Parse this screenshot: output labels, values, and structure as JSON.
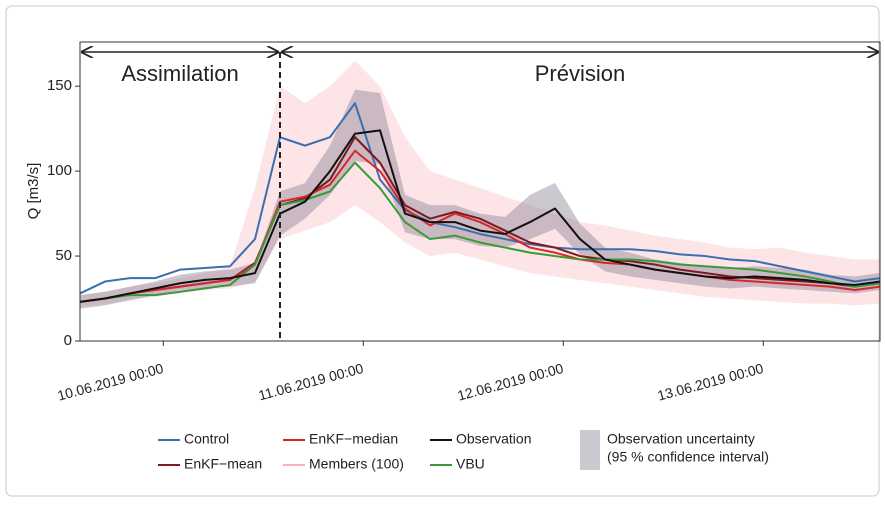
{
  "chart_data": {
    "type": "line",
    "y_label": "Q [m3/s]",
    "annotations": [
      "Assimilation",
      "Prévision"
    ],
    "assimilation_end": "2019-06-10 14:00",
    "x": [
      "2019-06-09 14:00",
      "2019-06-09 17:00",
      "2019-06-09 20:00",
      "2019-06-09 23:00",
      "2019-06-10 02:00",
      "2019-06-10 05:00",
      "2019-06-10 08:00",
      "2019-06-10 11:00",
      "2019-06-10 14:00",
      "2019-06-10 17:00",
      "2019-06-10 20:00",
      "2019-06-10 23:00",
      "2019-06-11 02:00",
      "2019-06-11 05:00",
      "2019-06-11 08:00",
      "2019-06-11 11:00",
      "2019-06-11 14:00",
      "2019-06-11 17:00",
      "2019-06-11 20:00",
      "2019-06-11 23:00",
      "2019-06-12 02:00",
      "2019-06-12 05:00",
      "2019-06-12 08:00",
      "2019-06-12 11:00",
      "2019-06-12 14:00",
      "2019-06-12 17:00",
      "2019-06-12 20:00",
      "2019-06-12 23:00",
      "2019-06-13 02:00",
      "2019-06-13 05:00",
      "2019-06-13 08:00",
      "2019-06-13 11:00",
      "2019-06-13 14:00"
    ],
    "xlim": [
      "2019-06-09 14:00",
      "2019-06-13 14:00"
    ],
    "xticks": [
      {
        "value": "2019-06-10 00:00",
        "label": "10.06.2019 00:00"
      },
      {
        "value": "2019-06-11 00:00",
        "label": "11.06.2019 00:00"
      },
      {
        "value": "2019-06-12 00:00",
        "label": "12.06.2019 00:00"
      },
      {
        "value": "2019-06-13 00:00",
        "label": "13.06.2019 00:00"
      }
    ],
    "ylim": [
      0,
      176
    ],
    "yticks": [
      0,
      50,
      100,
      150
    ],
    "bands": [
      {
        "name": [
          "Members (100)"
        ],
        "color": "#f6b3b9",
        "lower": [
          20,
          22,
          24,
          26,
          28,
          30,
          31,
          35,
          60,
          65,
          70,
          80,
          70,
          58,
          50,
          52,
          48,
          44,
          40,
          38,
          36,
          34,
          32,
          30,
          28,
          26,
          25,
          24,
          23,
          22,
          22,
          21,
          22
        ],
        "upper": [
          27,
          29,
          32,
          34,
          37,
          40,
          44,
          90,
          150,
          140,
          150,
          165,
          150,
          120,
          100,
          95,
          90,
          85,
          80,
          75,
          70,
          68,
          65,
          62,
          60,
          58,
          55,
          54,
          55,
          52,
          50,
          48,
          48
        ]
      },
      {
        "name": [
          "Observation uncertainty",
          "(95 % confidence interval)"
        ],
        "color": "#8e8694",
        "lower": [
          19,
          21,
          24,
          27,
          30,
          31,
          32,
          34,
          62,
          72,
          86,
          106,
          104,
          64,
          60,
          60,
          56,
          55,
          60,
          66,
          51,
          41,
          38,
          36,
          34,
          32,
          31,
          32,
          31,
          30,
          29,
          28,
          30
        ],
        "upper": [
          27,
          29,
          32,
          35,
          39,
          41,
          42,
          46,
          88,
          93,
          115,
          148,
          146,
          86,
          80,
          80,
          75,
          73,
          86,
          93,
          69,
          55,
          52,
          48,
          46,
          44,
          43,
          44,
          43,
          42,
          39,
          38,
          40
        ]
      }
    ],
    "series": [
      {
        "name": "Control",
        "color": "#3a6fb0",
        "values": [
          28,
          35,
          37,
          37,
          42,
          43,
          44,
          60,
          120,
          115,
          120,
          140,
          95,
          77,
          70,
          67,
          63,
          60,
          57,
          55,
          54,
          54,
          54,
          53,
          51,
          50,
          48,
          47,
          44,
          41,
          38,
          35,
          37
        ]
      },
      {
        "name": "EnKF−mean",
        "color": "#7a1a22",
        "values": [
          23,
          25,
          28,
          30,
          32,
          34,
          36,
          46,
          80,
          84,
          95,
          120,
          105,
          80,
          72,
          76,
          72,
          65,
          58,
          55,
          50,
          48,
          47,
          45,
          42,
          40,
          38,
          37,
          36,
          35,
          34,
          32,
          34
        ]
      },
      {
        "name": "EnKF−median",
        "color": "#d6282b",
        "values": [
          23,
          25,
          28,
          30,
          32,
          34,
          36,
          45,
          82,
          85,
          92,
          112,
          100,
          78,
          68,
          75,
          70,
          63,
          55,
          52,
          48,
          46,
          45,
          42,
          40,
          38,
          36,
          35,
          34,
          33,
          32,
          30,
          32
        ]
      },
      {
        "name": "VBU",
        "color": "#3a9a3a",
        "values": [
          23,
          25,
          27,
          27,
          29,
          31,
          33,
          45,
          80,
          83,
          88,
          105,
          90,
          70,
          60,
          62,
          58,
          55,
          52,
          50,
          48,
          48,
          48,
          47,
          45,
          44,
          43,
          42,
          40,
          38,
          35,
          32,
          34
        ]
      },
      {
        "name": "Observation",
        "color": "#111111",
        "values": [
          23,
          25,
          28,
          31,
          34,
          36,
          37,
          40,
          75,
          82,
          100,
          122,
          124,
          75,
          70,
          70,
          65,
          63,
          70,
          78,
          60,
          48,
          45,
          42,
          40,
          38,
          37,
          38,
          37,
          36,
          34,
          33,
          35
        ]
      }
    ]
  }
}
